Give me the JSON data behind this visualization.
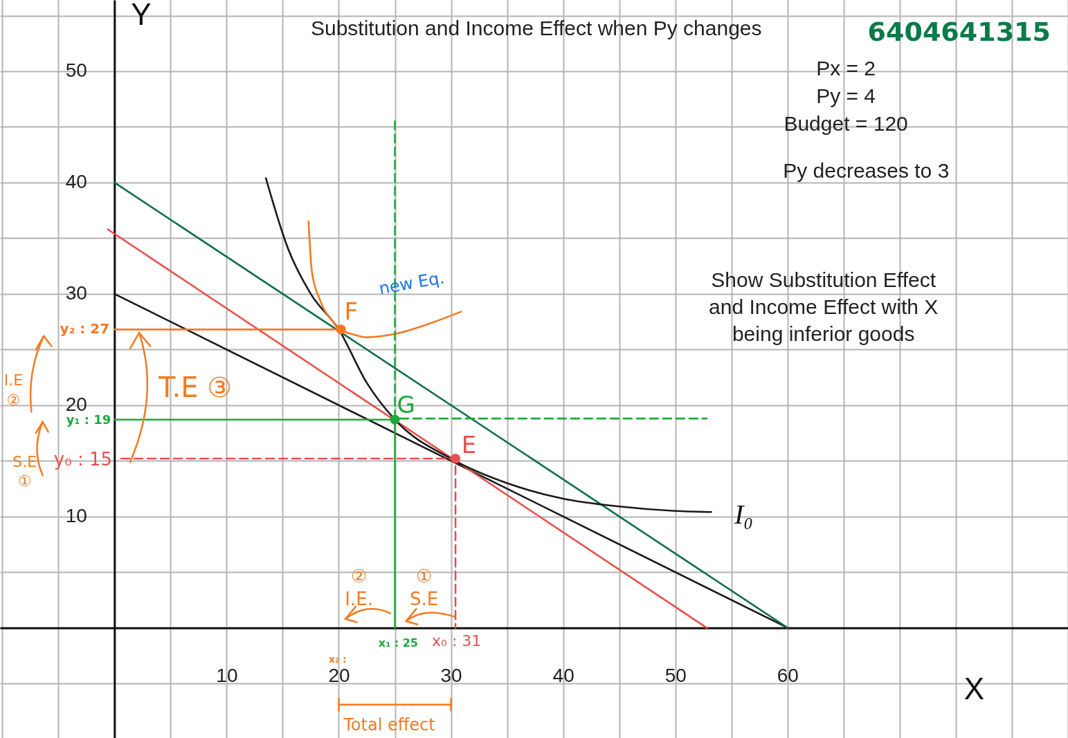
{
  "chart_data": {
    "type": "line",
    "title": "Substitution and Income Effect when Py changes",
    "xlabel": "X",
    "ylabel": "Y",
    "xlim": [
      -10.2,
      85
    ],
    "ylim": [
      -9.9,
      56.4
    ],
    "xticks": [
      {
        "value": -10,
        "label": null
      },
      {
        "value": -5,
        "label": null
      },
      {
        "value": 0,
        "label": null
      },
      {
        "value": 5,
        "label": null
      },
      10,
      {
        "value": 15,
        "label": null
      },
      20,
      {
        "value": 25,
        "label": null
      },
      30,
      {
        "value": 35,
        "label": null
      },
      40,
      {
        "value": 45,
        "label": null
      },
      50,
      {
        "value": 55,
        "label": null
      },
      60,
      {
        "value": 65,
        "label": null
      },
      {
        "value": 70,
        "label": null
      },
      {
        "value": 75,
        "label": null
      },
      {
        "value": 80,
        "label": null
      },
      {
        "value": 85,
        "label": null
      }
    ],
    "yticks": [
      {
        "value": -5,
        "label": null
      },
      {
        "value": 0,
        "label": null
      },
      {
        "value": 5,
        "label": null
      },
      10,
      {
        "value": 15,
        "label": null
      },
      20,
      {
        "value": 25,
        "label": null
      },
      30,
      {
        "value": 35,
        "label": null
      },
      40,
      {
        "value": 45,
        "label": null
      },
      50,
      {
        "value": 55,
        "label": null
      }
    ],
    "grid": true,
    "legend": false,
    "series": [
      {
        "color": "#1a1a1a",
        "x": [
          0,
          60
        ],
        "values": [
          30,
          0
        ],
        "marker": "none",
        "line_style": "solid"
      },
      {
        "color": "#e8504f",
        "x": [
          -0.6,
          52.8
        ],
        "values": [
          35.8,
          0
        ],
        "marker": "none",
        "line_style": "solid"
      },
      {
        "color": "#0f6e4e",
        "x": [
          0,
          60
        ],
        "values": [
          40,
          0
        ],
        "marker": "none",
        "line_style": "solid"
      },
      {
        "color": "#1a1a1a",
        "x": [
          13.5,
          15.5,
          17.5,
          20,
          22.5,
          25,
          30,
          35,
          40,
          45,
          50,
          53.2
        ],
        "values": [
          40.4,
          34,
          30,
          26.8,
          22,
          18.7,
          15.2,
          13,
          11.6,
          10.9,
          10.5,
          10.4
        ],
        "marker": "none",
        "line_style": "solid"
      },
      {
        "color": "#f47a20",
        "x": [
          17.3,
          17.6,
          18.3,
          19.5,
          20.2,
          21.5,
          22.5,
          25,
          28,
          30.9
        ],
        "values": [
          36.5,
          32,
          29.5,
          27.5,
          26.8,
          26.3,
          26.1,
          26.4,
          27.3,
          28.4
        ],
        "marker": "none",
        "line_style": "solid"
      },
      {
        "color": "#f47a20",
        "x": [
          0,
          20.2
        ],
        "values": [
          26.8,
          26.8
        ],
        "marker": "none",
        "line_style": "solid"
      },
      {
        "color": "#1ea83a",
        "x": [
          0,
          25,
          25
        ],
        "values": [
          18.7,
          18.7,
          0
        ],
        "marker": "none",
        "line_style": "solid"
      },
      {
        "color": "#1ea83a",
        "x": [
          25,
          25,
          52.8
        ],
        "values": [
          45.5,
          18.8,
          18.8
        ],
        "marker": "none",
        "line_style": "dashed"
      },
      {
        "color": "#e8504f",
        "x": [
          0.6,
          30.4,
          30.4
        ],
        "values": [
          15.2,
          15.2,
          0
        ],
        "marker": "none",
        "line_style": "dashed"
      },
      {
        "type": "scatter",
        "color": "#f47a20",
        "x": [
          20.2
        ],
        "values": [
          26.8
        ],
        "marker": "circle"
      },
      {
        "type": "scatter",
        "color": "#1ea83a",
        "x": [
          25
        ],
        "values": [
          18.7
        ],
        "marker": "circle"
      },
      {
        "type": "scatter",
        "color": "#e8504f",
        "x": [
          30.4
        ],
        "values": [
          15.2
        ],
        "marker": "circle"
      }
    ],
    "annotations": [
      "Px = 2",
      "Py = 4",
      "Budget = 120",
      "Py  decreases to 3",
      "Show Substitution Effect and Income Effect with X being inferior goods",
      "F",
      "G",
      "E",
      "I₀",
      "new Eq.",
      "y₂ : 27",
      "y₁ : 19",
      "y₀ : 15",
      "x₁ : 25",
      "x₀ : 31",
      "x₂ :",
      "T.E ③",
      "I.E ②",
      "S.E ①",
      "② I.E.",
      "① S.E",
      "Total effect",
      "6404641315"
    ]
  }
}
